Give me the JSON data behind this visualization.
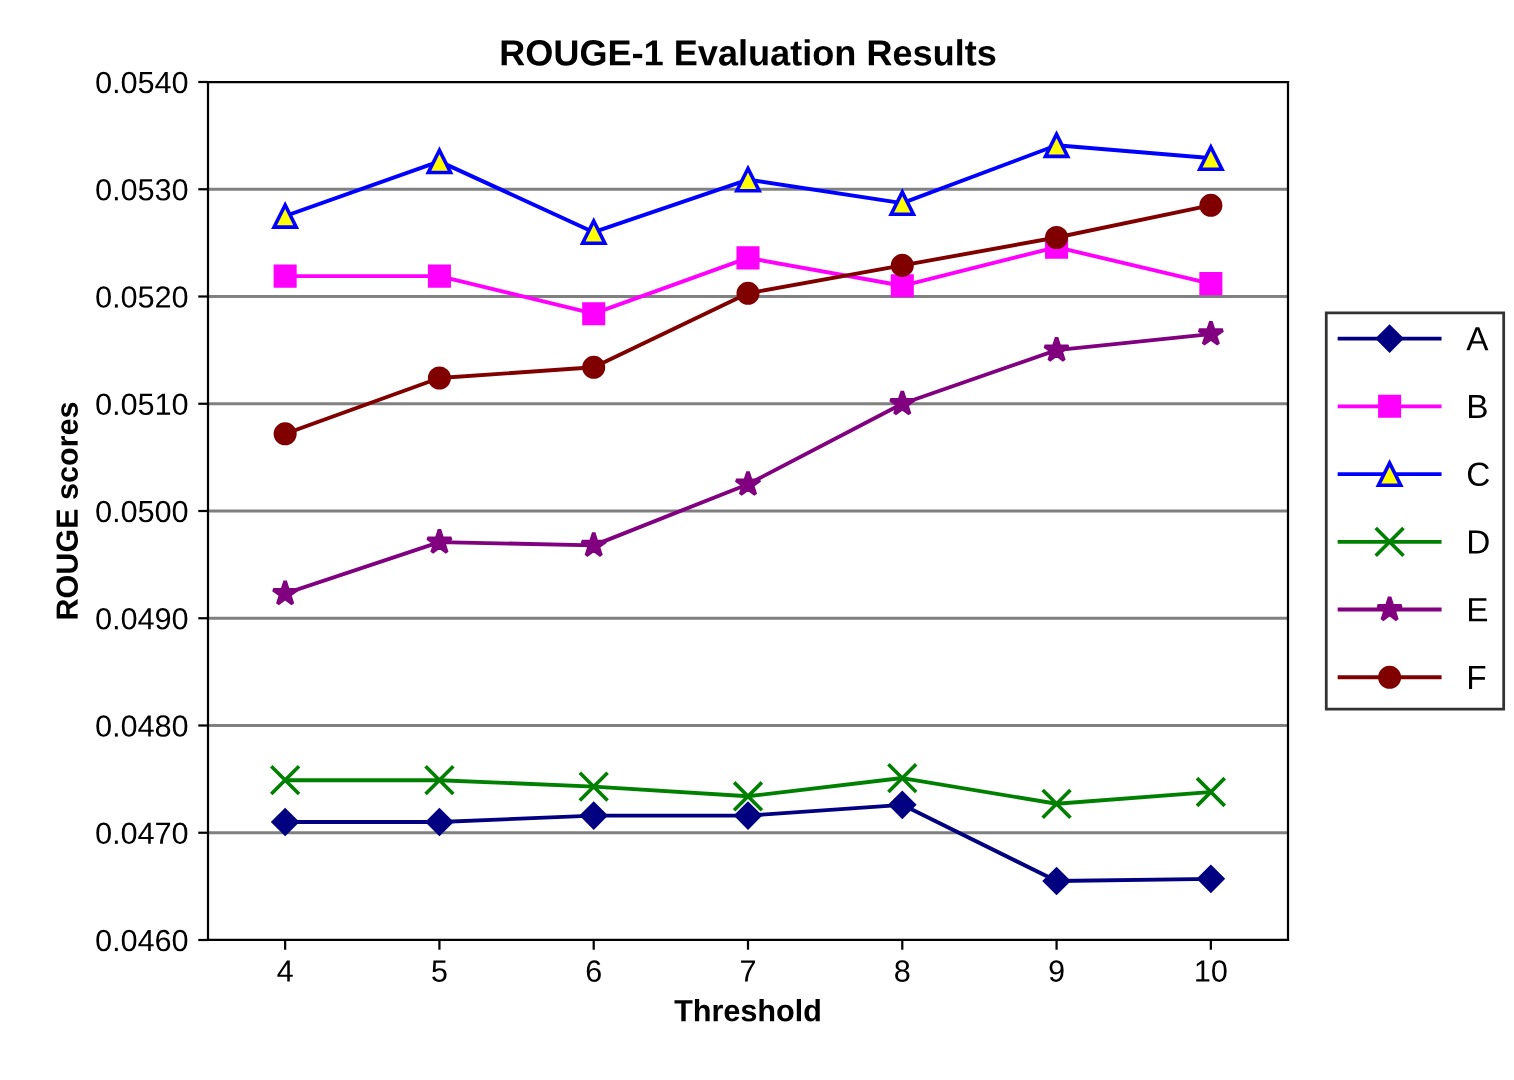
{
  "chart_data": {
    "type": "line",
    "title": "ROUGE-1 Evaluation Results",
    "xlabel": "Threshold",
    "ylabel": "ROUGE scores",
    "categories": [
      "4",
      "5",
      "6",
      "7",
      "8",
      "9",
      "10"
    ],
    "series": [
      {
        "name": "A",
        "color": "#000080",
        "marker": "diamond",
        "values": [
          0.0471,
          0.0471,
          0.04716,
          0.04716,
          0.04726,
          0.04655,
          0.04657
        ]
      },
      {
        "name": "B",
        "color": "#ff00ff",
        "marker": "square",
        "values": [
          0.05219,
          0.05219,
          0.05184,
          0.05236,
          0.0521,
          0.05246,
          0.05212
        ]
      },
      {
        "name": "C",
        "color": "#0000ff",
        "marker": "triangle",
        "values": [
          0.05275,
          0.05326,
          0.0526,
          0.05309,
          0.05287,
          0.05341,
          0.05329
        ]
      },
      {
        "name": "D",
        "color": "#008000",
        "marker": "cross",
        "values": [
          0.04749,
          0.04749,
          0.04743,
          0.04734,
          0.04751,
          0.04727,
          0.04738
        ]
      },
      {
        "name": "E",
        "color": "#800080",
        "marker": "star",
        "values": [
          0.04923,
          0.04971,
          0.04968,
          0.05025,
          0.051,
          0.0515,
          0.05165
        ]
      },
      {
        "name": "F",
        "color": "#800000",
        "marker": "circle",
        "values": [
          0.05072,
          0.05124,
          0.05134,
          0.05203,
          0.05229,
          0.05255,
          0.05285
        ]
      }
    ],
    "ylim": [
      0.046,
      0.054
    ],
    "yticks": [
      {
        "value": 0.046,
        "label": "0.0460"
      },
      {
        "value": 0.047,
        "label": "0.0470"
      },
      {
        "value": 0.048,
        "label": "0.0480"
      },
      {
        "value": 0.049,
        "label": "0.0490"
      },
      {
        "value": 0.05,
        "label": "0.0500"
      },
      {
        "value": 0.051,
        "label": "0.0510"
      },
      {
        "value": 0.052,
        "label": "0.0520"
      },
      {
        "value": 0.053,
        "label": "0.0530"
      },
      {
        "value": 0.054,
        "label": "0.0540"
      }
    ],
    "grid": "y",
    "legend": "right",
    "line_style": "solid"
  }
}
